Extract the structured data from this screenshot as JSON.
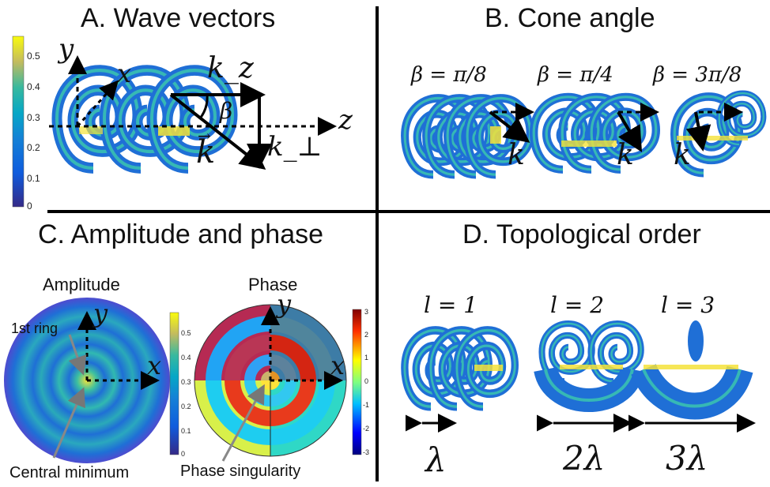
{
  "panels": {
    "a_title": "A. Wave vectors",
    "b_title": "B. Cone angle",
    "c_title": "C. Amplitude and phase",
    "d_title": "D. Topological order"
  },
  "panel_a": {
    "axis_y": "y",
    "axis_x": "x",
    "axis_z": "z",
    "kz": "k_z",
    "beta": "β",
    "kperp": "k_⊥",
    "kvec": "k",
    "colorbar_ticks": [
      "0.5",
      "0.4",
      "0.3",
      "0.2",
      "0.1",
      "0"
    ]
  },
  "panel_b": {
    "angles": [
      "β = π/8",
      "β = π/4",
      "β = 3π/8"
    ],
    "kvec": "k"
  },
  "panel_c": {
    "amplitude_label": "Amplitude",
    "phase_label": "Phase",
    "first_ring": "1st ring",
    "central_minimum": "Central minimum",
    "phase_singularity": "Phase singularity",
    "axis_x": "x",
    "axis_y": "y",
    "amp_ticks": [
      "0.5",
      "0.4",
      "0.3",
      "0.2",
      "0.1",
      "0"
    ],
    "phase_ticks": [
      "3",
      "2",
      "1",
      "0",
      "-1",
      "-2",
      "-3"
    ]
  },
  "panel_d": {
    "orders": [
      "l = 1",
      "l = 2",
      "l = 3"
    ],
    "lambdas": [
      "λ",
      "2λ",
      "3λ"
    ]
  },
  "colors": {
    "parula_low": "#352a87",
    "parula_mid": "#21b1c4",
    "parula_high": "#f9fb0e",
    "ring_blue": "#1f6fd6",
    "divider": "#000000"
  }
}
